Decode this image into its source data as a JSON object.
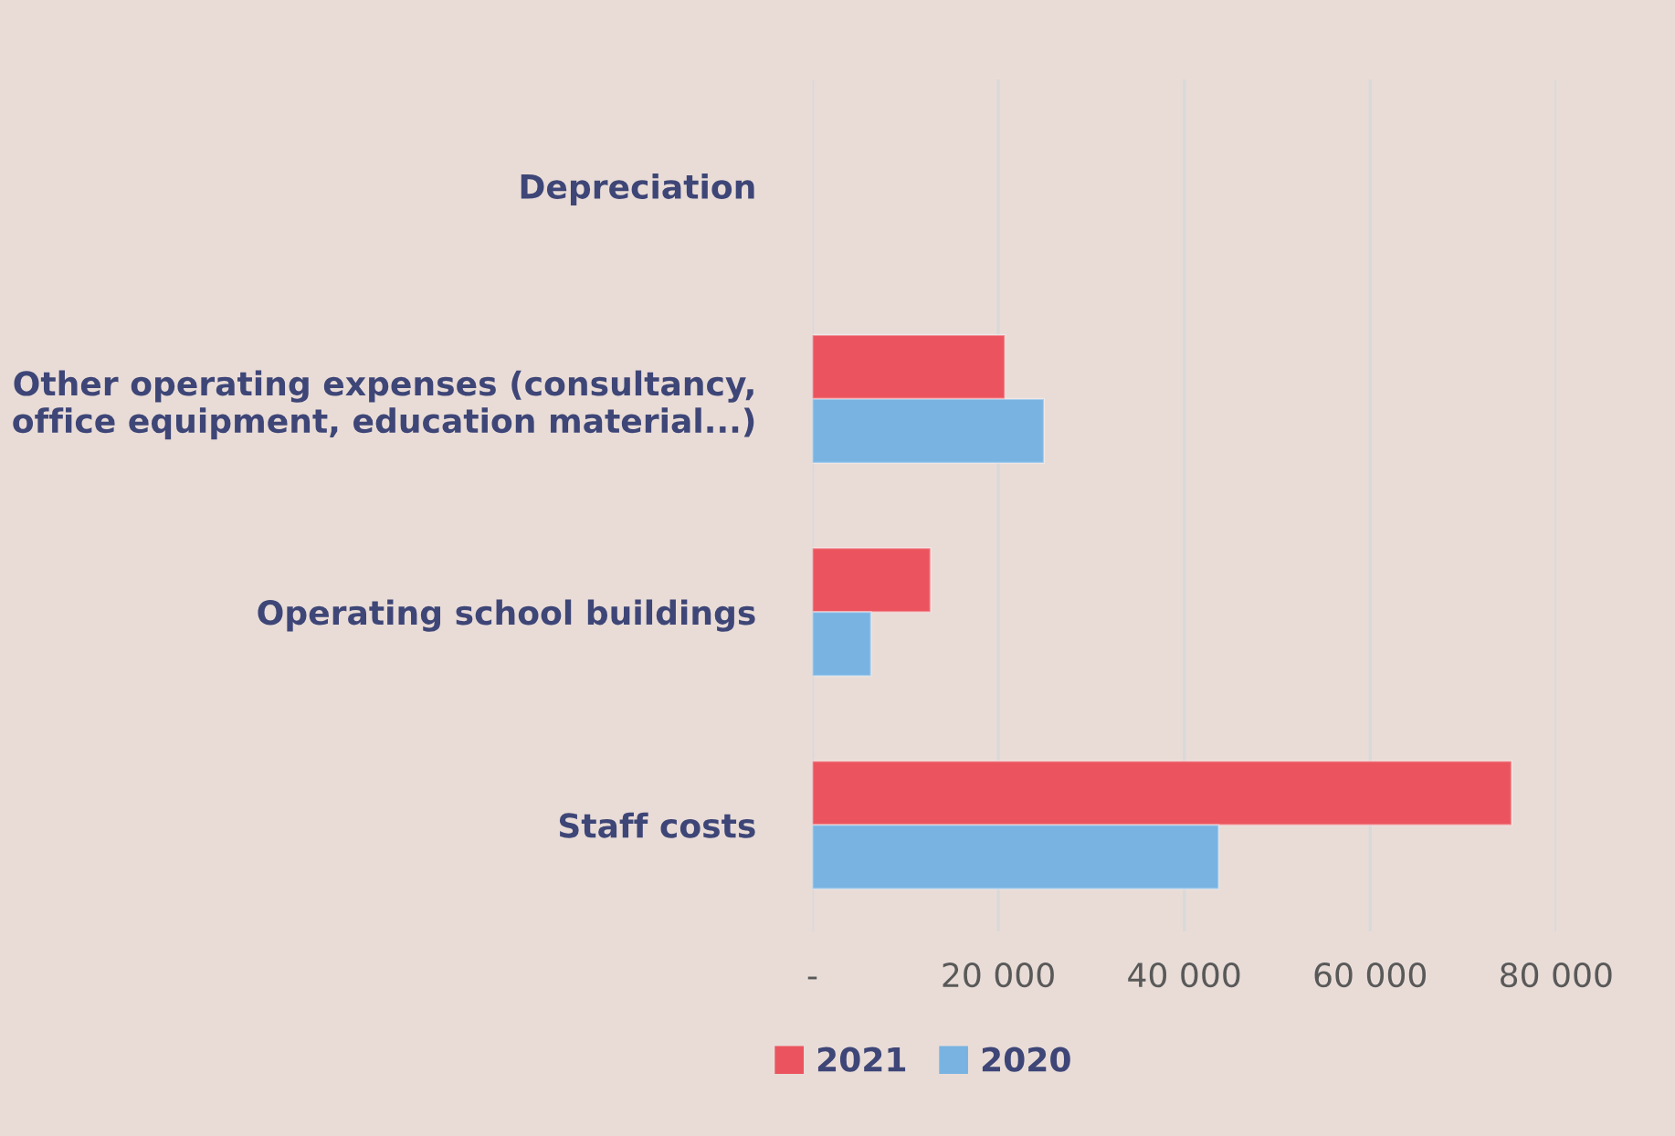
{
  "chart_data": {
    "type": "bar",
    "orientation": "horizontal",
    "categories": [
      "Depreciation",
      "Other operating expenses (consultancy,\noffice equipment, education material...)",
      "Operating school buildings",
      "Staff costs"
    ],
    "series": [
      {
        "name": "2021",
        "color": "#eb545e",
        "values": [
          null,
          20700,
          12700,
          75200
        ]
      },
      {
        "name": "2020",
        "color": "#78b3e2",
        "values": [
          null,
          24900,
          6300,
          43700
        ]
      }
    ],
    "xlim": [
      0,
      80000
    ],
    "xticks": [
      {
        "value": 0,
        "label": "-"
      },
      {
        "value": 20000,
        "label": "20 000"
      },
      {
        "value": 40000,
        "label": "40 000"
      },
      {
        "value": 60000,
        "label": "60 000"
      },
      {
        "value": 80000,
        "label": "80 000"
      }
    ],
    "grid": "x",
    "legend": "bottom"
  }
}
